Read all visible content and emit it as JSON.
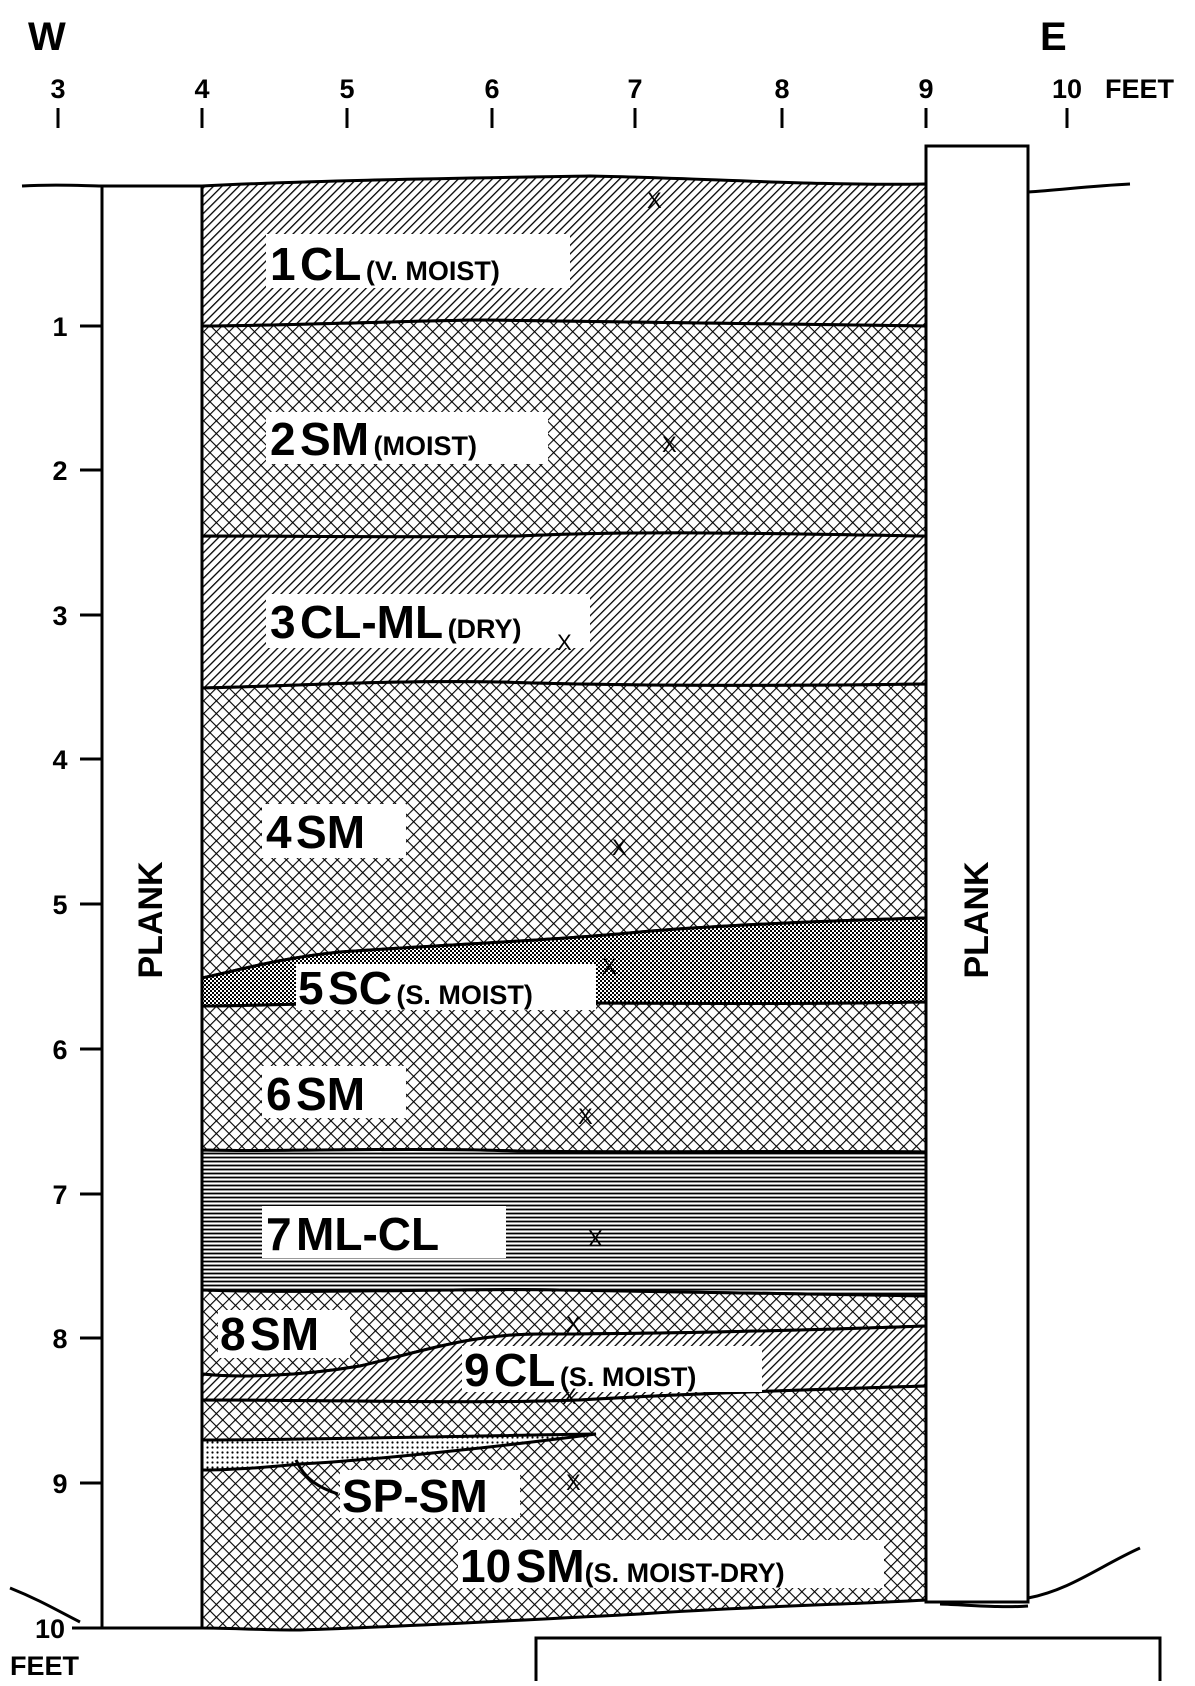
{
  "header": {
    "west": "W",
    "east": "E"
  },
  "horizontal_scale": {
    "ticks": [
      "3",
      "4",
      "5",
      "6",
      "7",
      "8",
      "9",
      "10"
    ],
    "unit": "FEET"
  },
  "vertical_scale": {
    "ticks": [
      "1",
      "2",
      "3",
      "4",
      "5",
      "6",
      "7",
      "8",
      "9",
      "10"
    ],
    "unit": "FEET"
  },
  "planks": {
    "west": "PLANK",
    "east": "PLANK"
  },
  "sample_marker": "X",
  "layers": [
    {
      "id": 1,
      "num": "1",
      "soil": "CL",
      "moisture": "(V. MOIST)",
      "pattern": "diagonal-hatch"
    },
    {
      "id": 2,
      "num": "2",
      "soil": "SM",
      "moisture": "(MOIST)",
      "pattern": "cross-hatch"
    },
    {
      "id": 3,
      "num": "3",
      "soil": "CL-ML",
      "moisture": "(DRY)",
      "pattern": "diagonal-hatch"
    },
    {
      "id": 4,
      "num": "4",
      "soil": "SM",
      "moisture": "",
      "pattern": "cross-hatch"
    },
    {
      "id": 5,
      "num": "5",
      "soil": "SC",
      "moisture": "(S. MOIST)",
      "pattern": "dots-hatch"
    },
    {
      "id": 6,
      "num": "6",
      "soil": "SM",
      "moisture": "",
      "pattern": "cross-hatch"
    },
    {
      "id": 7,
      "num": "7",
      "soil": "ML-CL",
      "moisture": "",
      "pattern": "horizontal-lines"
    },
    {
      "id": 8,
      "num": "8",
      "soil": "SM",
      "moisture": "",
      "pattern": "cross-hatch"
    },
    {
      "id": 9,
      "num": "9",
      "soil": "CL",
      "moisture": "(S. MOIST)",
      "pattern": "diagonal-hatch"
    },
    {
      "id": "lens",
      "num": "",
      "soil": "SP-SM",
      "moisture": "",
      "pattern": "dots"
    },
    {
      "id": 10,
      "num": "10",
      "soil": "SM",
      "moisture": "(S. MOIST-DRY)",
      "pattern": "cross-hatch"
    }
  ]
}
